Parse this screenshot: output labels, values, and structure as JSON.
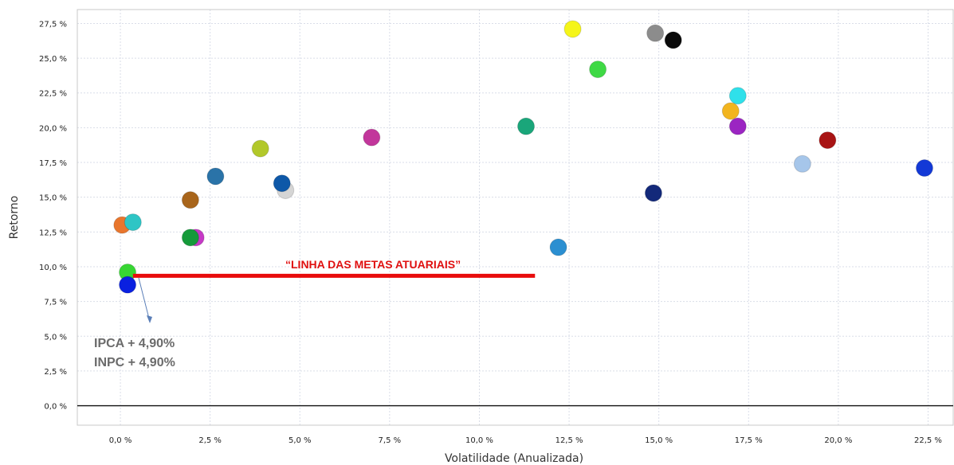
{
  "chart_data": {
    "type": "scatter",
    "title": "",
    "xlabel": "Volatilidade (Anualizada)",
    "ylabel": "Retorno",
    "xlim": [
      -1.2,
      23.2
    ],
    "ylim": [
      -1.4,
      28.5
    ],
    "grid": true,
    "x_ticks": [
      0,
      2.5,
      5,
      7.5,
      10,
      12.5,
      15,
      17.5,
      20,
      22.5
    ],
    "x_tick_labels": [
      "0,0 %",
      "2,5 %",
      "5,0 %",
      "7,5 %",
      "10,0 %",
      "12,5 %",
      "15,0 %",
      "17,5 %",
      "20,0 %",
      "22,5 %"
    ],
    "y_ticks": [
      0,
      2.5,
      5,
      7.5,
      10,
      12.5,
      15,
      17.5,
      20,
      22.5,
      25,
      27.5
    ],
    "y_tick_labels": [
      "0,0 %",
      "2,5 %",
      "5,0 %",
      "7,5 %",
      "10,0 %",
      "12,5 %",
      "15,0 %",
      "17,5 %",
      "20,0 %",
      "22,5 %",
      "25,0 %",
      "27,5 %"
    ],
    "points": [
      {
        "x": 0.05,
        "y": 13.0,
        "color": "#e8762d"
      },
      {
        "x": 0.35,
        "y": 13.2,
        "color": "#2ec5c5"
      },
      {
        "x": 0.2,
        "y": 9.6,
        "color": "#37d633"
      },
      {
        "x": 0.2,
        "y": 8.7,
        "color": "#0a20e0"
      },
      {
        "x": 2.1,
        "y": 12.1,
        "color": "#c639c6"
      },
      {
        "x": 1.95,
        "y": 12.1,
        "color": "#159a3a"
      },
      {
        "x": 1.95,
        "y": 14.8,
        "color": "#a8651b"
      },
      {
        "x": 2.65,
        "y": 16.5,
        "color": "#2a73a8"
      },
      {
        "x": 3.9,
        "y": 18.5,
        "color": "#b2c82a"
      },
      {
        "x": 4.6,
        "y": 15.5,
        "color": "#d5d5d5"
      },
      {
        "x": 4.5,
        "y": 16.0,
        "color": "#0e58a8"
      },
      {
        "x": 7.0,
        "y": 19.3,
        "color": "#c2369b"
      },
      {
        "x": 11.3,
        "y": 20.1,
        "color": "#1aa67a"
      },
      {
        "x": 12.2,
        "y": 11.4,
        "color": "#2b8fd1"
      },
      {
        "x": 12.6,
        "y": 27.1,
        "color": "#f5f51a"
      },
      {
        "x": 13.3,
        "y": 24.2,
        "color": "#3fd945"
      },
      {
        "x": 14.9,
        "y": 26.8,
        "color": "#8c8c8c"
      },
      {
        "x": 15.4,
        "y": 26.3,
        "color": "#0a0a0a"
      },
      {
        "x": 14.85,
        "y": 15.3,
        "color": "#13297a"
      },
      {
        "x": 17.2,
        "y": 22.3,
        "color": "#2fe0ea"
      },
      {
        "x": 17.0,
        "y": 21.2,
        "color": "#f2b51f"
      },
      {
        "x": 17.2,
        "y": 20.1,
        "color": "#9b25c2"
      },
      {
        "x": 19.0,
        "y": 17.4,
        "color": "#a6c6ea"
      },
      {
        "x": 19.7,
        "y": 19.1,
        "color": "#a81414"
      },
      {
        "x": 22.4,
        "y": 17.1,
        "color": "#1339d6"
      }
    ],
    "annotations": {
      "goal_line": {
        "label": "“LINHA DAS METAS ATUARIAIS”",
        "x_start": 0.35,
        "x_end": 11.55,
        "y": 9.35,
        "color": "#e80c0c"
      },
      "benchmark_labels": [
        "IPCA + 4,90%",
        "INPC + 4,90%"
      ]
    }
  }
}
